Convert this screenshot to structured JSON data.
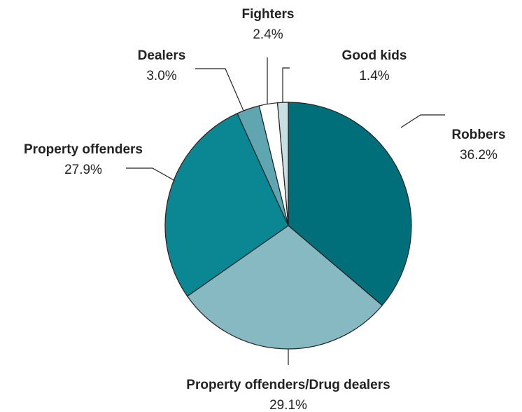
{
  "chart_data": {
    "type": "pie",
    "start_angle": "12 o'clock",
    "direction": "clockwise",
    "slices": [
      {
        "label": "Robbers",
        "value": 36.2,
        "value_label": "36.2%",
        "color": "#006f7a"
      },
      {
        "label": "Property offenders/Drug dealers",
        "value": 29.1,
        "value_label": "29.1%",
        "color": "#86b9c1"
      },
      {
        "label": "Property offenders",
        "value": 27.9,
        "value_label": "27.9%",
        "color": "#0a8792"
      },
      {
        "label": "Dealers",
        "value": 3.0,
        "value_label": "3.0%",
        "color": "#5fa6b1"
      },
      {
        "label": "Fighters",
        "value": 2.4,
        "value_label": "2.4%",
        "color": "#ffffff"
      },
      {
        "label": "Good kids",
        "value": 1.4,
        "value_label": "1.4%",
        "color": "#c8dfe3"
      }
    ]
  }
}
